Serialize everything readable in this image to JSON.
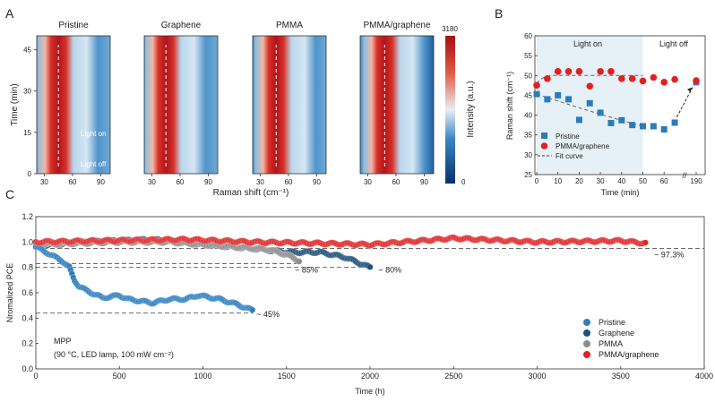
{
  "panel_labels": {
    "a": "A",
    "b": "B",
    "c": "C"
  },
  "chart_data": [
    {
      "type": "heatmap",
      "panels": [
        "Pristine",
        "Graphene",
        "PMMA",
        "PMMA/graphene"
      ],
      "xlabel": "Raman shift (cm⁻¹)",
      "ylabel": "Time (min)",
      "xticks": [
        "30",
        "60",
        "90"
      ],
      "yticks": [
        "0",
        "15",
        "30",
        "45"
      ],
      "colorbar": {
        "label": "Intensity (a.u.)",
        "max": "3180",
        "min": "0",
        "colors": [
          "#08306b",
          "#2f7bb8",
          "#e8eef5",
          "#e15a43",
          "#a50f15"
        ]
      },
      "annotations": [
        "Light on",
        "Light off"
      ],
      "peak_center_cm": [
        45,
        45,
        47,
        48
      ]
    },
    {
      "type": "scatter",
      "xlabel": "Time (min)",
      "ylabel": "Raman shift (cm⁻¹)",
      "ylim": [
        25,
        60
      ],
      "yticks": [
        "25",
        "30",
        "35",
        "40",
        "45",
        "50",
        "55",
        "60"
      ],
      "xticks": [
        "0",
        "10",
        "20",
        "30",
        "40",
        "50",
        "60",
        "190"
      ],
      "x": [
        0,
        5,
        10,
        15,
        20,
        25,
        30,
        35,
        40,
        45,
        50,
        55,
        60,
        65,
        190
      ],
      "series": [
        {
          "name": "Pristine",
          "marker": "square",
          "color": "#2b7bba",
          "values": [
            45.3,
            44,
            45,
            44,
            38.8,
            43,
            40.6,
            38,
            38.7,
            37.5,
            37.2,
            37.2,
            36.4,
            38.1,
            48.3
          ]
        },
        {
          "name": "PMMA/graphene",
          "marker": "circle",
          "color": "#e41f1f",
          "values": [
            47.5,
            49.2,
            51,
            51,
            51,
            47.3,
            51,
            51,
            49.2,
            49.2,
            48.6,
            49.5,
            48.3,
            49,
            48.7
          ]
        }
      ],
      "fit_name": "Fit curve",
      "region_labels": {
        "on": "Light on",
        "off": "Light off"
      },
      "shaded_region": [
        0,
        50
      ],
      "legend": "bottom-left"
    },
    {
      "type": "scatter",
      "xlabel": "Time (h)",
      "ylabel": "Nromalized PCE",
      "xlim": [
        0,
        4000
      ],
      "ylim": [
        0,
        1.2
      ],
      "xticks": [
        "0",
        "500",
        "1000",
        "1500",
        "2000",
        "2500",
        "3000",
        "3500",
        "4000"
      ],
      "yticks": [
        "0.0",
        "0.2",
        "0.4",
        "0.6",
        "0.8",
        "1.0",
        "1.2"
      ],
      "series": [
        {
          "name": "Pristine",
          "color": "#2f7fbf",
          "points": [
            [
              0,
              0.96
            ],
            [
              50,
              0.93
            ],
            [
              100,
              0.89
            ],
            [
              150,
              0.86
            ],
            [
              200,
              0.8
            ],
            [
              230,
              0.7
            ],
            [
              260,
              0.65
            ],
            [
              300,
              0.62
            ],
            [
              400,
              0.56
            ],
            [
              500,
              0.58
            ],
            [
              550,
              0.55
            ],
            [
              700,
              0.52
            ],
            [
              800,
              0.55
            ],
            [
              900,
              0.55
            ],
            [
              970,
              0.58
            ],
            [
              1100,
              0.55
            ],
            [
              1200,
              0.51
            ],
            [
              1300,
              0.46
            ]
          ]
        },
        {
          "name": "Graphene",
          "color": "#1b4f7a",
          "points": [
            [
              0,
              0.97
            ],
            [
              300,
              1.0
            ],
            [
              700,
              1.02
            ],
            [
              1000,
              0.98
            ],
            [
              1300,
              0.95
            ],
            [
              1500,
              0.92
            ],
            [
              1700,
              0.92
            ],
            [
              1850,
              0.88
            ],
            [
              2000,
              0.8
            ]
          ]
        },
        {
          "name": "PMMA",
          "color": "#8c8c8c",
          "points": [
            [
              0,
              0.98
            ],
            [
              500,
              1.0
            ],
            [
              800,
              1.0
            ],
            [
              900,
              0.99
            ],
            [
              1200,
              0.96
            ],
            [
              1400,
              0.94
            ],
            [
              1500,
              0.9
            ],
            [
              1580,
              0.85
            ]
          ]
        },
        {
          "name": "PMMA/graphene",
          "color": "#e02424",
          "points": [
            [
              0,
              1.0
            ],
            [
              400,
              1.01
            ],
            [
              900,
              1.02
            ],
            [
              1300,
              1.0
            ],
            [
              1700,
              0.99
            ],
            [
              2000,
              0.98
            ],
            [
              2500,
              1.03
            ],
            [
              3000,
              1.0
            ],
            [
              3500,
              1.01
            ],
            [
              3650,
              0.99
            ]
          ]
        }
      ],
      "reference_lines": [
        {
          "y": 0.95,
          "x_end": 4000,
          "label": "~ 97.3%"
        },
        {
          "y": 0.83,
          "x_end": 1580,
          "label": "~ 85%"
        },
        {
          "y": 0.8,
          "x_end": 1990,
          "label": "~ 80%"
        },
        {
          "y": 0.44,
          "x_end": 1300,
          "label": "~ 45%"
        }
      ],
      "note_line1": "MPP",
      "note_line2": "(90 °C, LED lamp, 100 mW cm⁻²)",
      "legend": "bottom-right"
    }
  ]
}
